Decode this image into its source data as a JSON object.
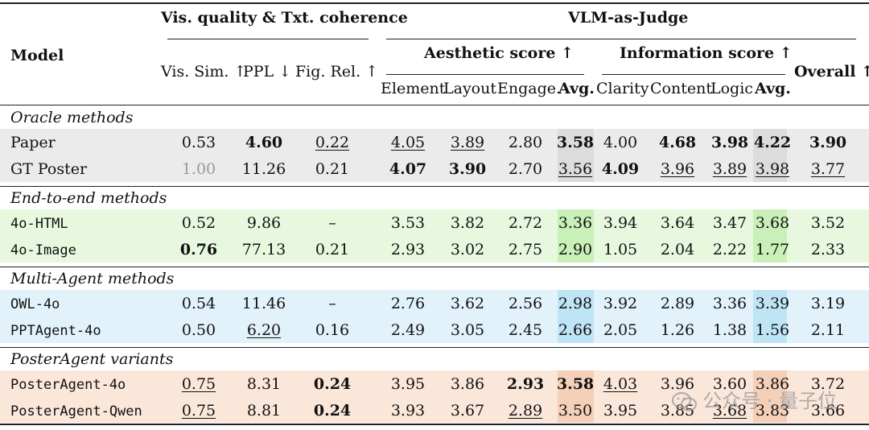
{
  "header": {
    "model": "Model",
    "group1": "Vis. quality & Txt. coherence",
    "group2": "VLM-as-Judge",
    "aesthetic": "Aesthetic score ↑",
    "information": "Information score ↑",
    "vis_sim": "Vis. Sim. ↑",
    "ppl": "PPL ↓",
    "fig_rel": "Fig. Rel. ↑",
    "element": "Element",
    "layout": "Layout",
    "engage": "Engage.",
    "avg": "Avg.",
    "clarity": "Clarity",
    "content": "Content",
    "logic": "Logic",
    "avg2": "Avg.",
    "overall": "Overall ↑"
  },
  "sections": [
    {
      "title": "Oracle methods",
      "band_color": "#ebebeb",
      "avg_color": "#dcdcdc",
      "mono": false,
      "rows": [
        {
          "model": "Paper",
          "cells": [
            [
              "0.53",
              ""
            ],
            [
              "4.60",
              "b"
            ],
            [
              "0.22",
              "u"
            ],
            [
              "4.05",
              "u"
            ],
            [
              "3.89",
              "u"
            ],
            [
              "2.80",
              ""
            ],
            [
              "3.58",
              "b"
            ],
            [
              "4.00",
              ""
            ],
            [
              "4.68",
              "b"
            ],
            [
              "3.98",
              "b"
            ],
            [
              "4.22",
              "b"
            ],
            [
              "3.90",
              "b"
            ]
          ]
        },
        {
          "model": "GT Poster",
          "cells": [
            [
              "1.00",
              "g"
            ],
            [
              "11.26",
              ""
            ],
            [
              "0.21",
              ""
            ],
            [
              "4.07",
              "b"
            ],
            [
              "3.90",
              "b"
            ],
            [
              "2.70",
              ""
            ],
            [
              "3.56",
              "u"
            ],
            [
              "4.09",
              "b"
            ],
            [
              "3.96",
              "u"
            ],
            [
              "3.89",
              "u"
            ],
            [
              "3.98",
              "u"
            ],
            [
              "3.77",
              "u"
            ]
          ]
        }
      ]
    },
    {
      "title": "End-to-end methods",
      "band_color": "#e8f8df",
      "avg_color": "#c9f0b8",
      "mono": true,
      "rows": [
        {
          "model": "4o-HTML",
          "cells": [
            [
              "0.52",
              ""
            ],
            [
              "9.86",
              ""
            ],
            [
              "–",
              ""
            ],
            [
              "3.53",
              ""
            ],
            [
              "3.82",
              ""
            ],
            [
              "2.72",
              ""
            ],
            [
              "3.36",
              ""
            ],
            [
              "3.94",
              ""
            ],
            [
              "3.64",
              ""
            ],
            [
              "3.47",
              ""
            ],
            [
              "3.68",
              ""
            ],
            [
              "3.52",
              ""
            ]
          ]
        },
        {
          "model": "4o-Image",
          "cells": [
            [
              "0.76",
              "b"
            ],
            [
              "77.13",
              ""
            ],
            [
              "0.21",
              ""
            ],
            [
              "2.93",
              ""
            ],
            [
              "3.02",
              ""
            ],
            [
              "2.75",
              ""
            ],
            [
              "2.90",
              ""
            ],
            [
              "1.05",
              ""
            ],
            [
              "2.04",
              ""
            ],
            [
              "2.22",
              ""
            ],
            [
              "1.77",
              ""
            ],
            [
              "2.33",
              ""
            ]
          ]
        }
      ]
    },
    {
      "title": "Multi-Agent methods",
      "band_color": "#e2f2fb",
      "avg_color": "#bfe4f6",
      "mono": true,
      "rows": [
        {
          "model": "OWL-4o",
          "cells": [
            [
              "0.54",
              ""
            ],
            [
              "11.46",
              ""
            ],
            [
              "–",
              ""
            ],
            [
              "2.76",
              ""
            ],
            [
              "3.62",
              ""
            ],
            [
              "2.56",
              ""
            ],
            [
              "2.98",
              ""
            ],
            [
              "3.92",
              ""
            ],
            [
              "2.89",
              ""
            ],
            [
              "3.36",
              ""
            ],
            [
              "3.39",
              ""
            ],
            [
              "3.19",
              ""
            ]
          ]
        },
        {
          "model": "PPTAgent-4o",
          "cells": [
            [
              "0.50",
              ""
            ],
            [
              "6.20",
              "u"
            ],
            [
              "0.16",
              ""
            ],
            [
              "2.49",
              ""
            ],
            [
              "3.05",
              ""
            ],
            [
              "2.45",
              ""
            ],
            [
              "2.66",
              ""
            ],
            [
              "2.05",
              ""
            ],
            [
              "1.26",
              ""
            ],
            [
              "1.38",
              ""
            ],
            [
              "1.56",
              ""
            ],
            [
              "2.11",
              ""
            ]
          ]
        }
      ]
    },
    {
      "title": "PosterAgent variants",
      "band_color": "#fbe6da",
      "avg_color": "#f5d0b9",
      "mono": true,
      "rows": [
        {
          "model": "PosterAgent-4o",
          "cells": [
            [
              "0.75",
              "u"
            ],
            [
              "8.31",
              ""
            ],
            [
              "0.24",
              "b"
            ],
            [
              "3.95",
              ""
            ],
            [
              "3.86",
              ""
            ],
            [
              "2.93",
              "b"
            ],
            [
              "3.58",
              "b"
            ],
            [
              "4.03",
              "u"
            ],
            [
              "3.96",
              ""
            ],
            [
              "3.60",
              ""
            ],
            [
              "3.86",
              ""
            ],
            [
              "3.72",
              ""
            ]
          ]
        },
        {
          "model": "PosterAgent-Qwen",
          "cells": [
            [
              "0.75",
              "u"
            ],
            [
              "8.81",
              ""
            ],
            [
              "0.24",
              "b"
            ],
            [
              "3.93",
              ""
            ],
            [
              "3.67",
              ""
            ],
            [
              "2.89",
              "u"
            ],
            [
              "3.50",
              ""
            ],
            [
              "3.95",
              ""
            ],
            [
              "3.85",
              ""
            ],
            [
              "3.68",
              "u"
            ],
            [
              "3.83",
              ""
            ],
            [
              "3.66",
              ""
            ]
          ]
        }
      ]
    }
  ],
  "watermark": "公众号 · 量子位"
}
